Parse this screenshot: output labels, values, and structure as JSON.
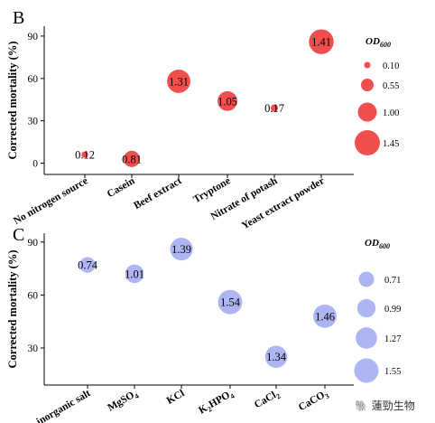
{
  "watermark": "🐘 蓮勁生物",
  "chart_data": [
    {
      "panel": "B",
      "type": "scatter",
      "ylabel": "Corrected mortality (%)",
      "ylim": [
        -8,
        97
      ],
      "yticks": [
        0,
        30,
        60,
        90
      ],
      "categories": [
        "No nitrogen source",
        "Casein",
        "Beef extract",
        "Tryptone",
        "Nitrate of potash",
        "Yeast extract powder"
      ],
      "y": [
        6,
        3,
        58,
        44,
        39,
        86
      ],
      "size_values": [
        0.12,
        0.81,
        1.31,
        1.05,
        0.17,
        1.41
      ],
      "point_labels": [
        "0.12",
        "0.81",
        "1.31",
        "1.05",
        "0.17",
        "1.41"
      ],
      "color": "#f04545",
      "legend": {
        "title": "OD",
        "title_sub": "600",
        "values": [
          0.1,
          0.55,
          1.0,
          1.45
        ],
        "labels": [
          "0.10",
          "0.55",
          "1.00",
          "1.45"
        ]
      }
    },
    {
      "panel": "C",
      "type": "scatter",
      "ylabel": "Corrected mortality (%)",
      "ylim": [
        9,
        95
      ],
      "yticks": [
        30,
        60,
        90
      ],
      "categories": [
        {
          "base": "No inorganic salt",
          "sub": ""
        },
        {
          "base": "MgSO",
          "sub": "4"
        },
        {
          "base": "KCl",
          "sub": ""
        },
        {
          "base": "K",
          "sub": "2",
          "rest": "HPO",
          "sub2": "4"
        },
        {
          "base": "CaCl",
          "sub": "2"
        },
        {
          "base": "CaCO",
          "sub": "3"
        }
      ],
      "y": [
        77,
        72,
        86,
        56,
        25,
        48
      ],
      "size_values": [
        0.74,
        1.01,
        1.39,
        1.54,
        1.34,
        1.46
      ],
      "point_labels": [
        "0.74",
        "1.01",
        "1.39",
        "1.54",
        "1.34",
        "1.46"
      ],
      "color": "#a9b1f2",
      "legend": {
        "title": "OD",
        "title_sub": "600",
        "values": [
          0.71,
          0.99,
          1.27,
          1.55
        ],
        "labels": [
          "0.71",
          "0.99",
          "1.27",
          "1.55"
        ]
      }
    }
  ]
}
